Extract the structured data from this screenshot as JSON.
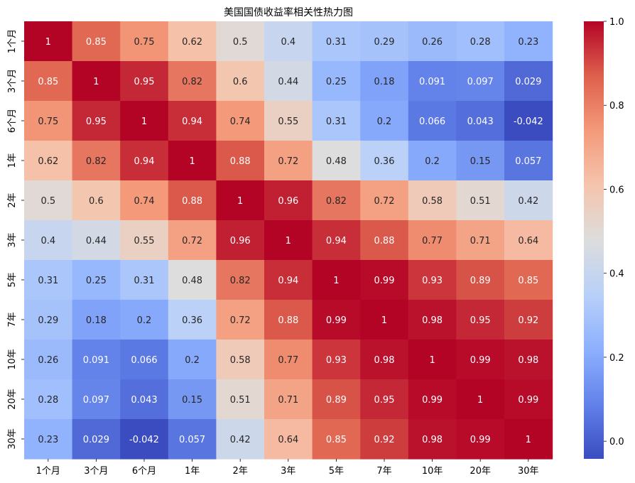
{
  "chart_data": {
    "type": "heatmap",
    "title": "美国国债收益率相关性热力图",
    "xlabel": "",
    "ylabel": "",
    "x_labels": [
      "1个月",
      "3个月",
      "6个月",
      "1年",
      "2年",
      "3年",
      "5年",
      "7年",
      "10年",
      "20年",
      "30年"
    ],
    "y_labels": [
      "1个月",
      "3个月",
      "6个月",
      "1年",
      "2年",
      "3年",
      "5年",
      "7年",
      "10年",
      "20年",
      "30年"
    ],
    "values": [
      [
        1,
        0.85,
        0.75,
        0.62,
        0.5,
        0.4,
        0.31,
        0.29,
        0.26,
        0.28,
        0.23
      ],
      [
        0.85,
        1,
        0.95,
        0.82,
        0.6,
        0.44,
        0.25,
        0.18,
        0.091,
        0.097,
        0.029
      ],
      [
        0.75,
        0.95,
        1,
        0.94,
        0.74,
        0.55,
        0.31,
        0.2,
        0.066,
        0.043,
        -0.042
      ],
      [
        0.62,
        0.82,
        0.94,
        1,
        0.88,
        0.72,
        0.48,
        0.36,
        0.2,
        0.15,
        0.057
      ],
      [
        0.5,
        0.6,
        0.74,
        0.88,
        1,
        0.96,
        0.82,
        0.72,
        0.58,
        0.51,
        0.42
      ],
      [
        0.4,
        0.44,
        0.55,
        0.72,
        0.96,
        1,
        0.94,
        0.88,
        0.77,
        0.71,
        0.64
      ],
      [
        0.31,
        0.25,
        0.31,
        0.48,
        0.82,
        0.94,
        1,
        0.99,
        0.93,
        0.89,
        0.85
      ],
      [
        0.29,
        0.18,
        0.2,
        0.36,
        0.72,
        0.88,
        0.99,
        1,
        0.98,
        0.95,
        0.92
      ],
      [
        0.26,
        0.091,
        0.066,
        0.2,
        0.58,
        0.77,
        0.93,
        0.98,
        1,
        0.99,
        0.98
      ],
      [
        0.28,
        0.097,
        0.043,
        0.15,
        0.51,
        0.71,
        0.89,
        0.95,
        0.99,
        1,
        0.99
      ],
      [
        0.23,
        0.029,
        -0.042,
        0.057,
        0.42,
        0.64,
        0.85,
        0.92,
        0.98,
        0.99,
        1
      ]
    ],
    "value_labels": [
      [
        "1",
        "0.85",
        "0.75",
        "0.62",
        "0.5",
        "0.4",
        "0.31",
        "0.29",
        "0.26",
        "0.28",
        "0.23"
      ],
      [
        "0.85",
        "1",
        "0.95",
        "0.82",
        "0.6",
        "0.44",
        "0.25",
        "0.18",
        "0.091",
        "0.097",
        "0.029"
      ],
      [
        "0.75",
        "0.95",
        "1",
        "0.94",
        "0.74",
        "0.55",
        "0.31",
        "0.2",
        "0.066",
        "0.043",
        "-0.042"
      ],
      [
        "0.62",
        "0.82",
        "0.94",
        "1",
        "0.88",
        "0.72",
        "0.48",
        "0.36",
        "0.2",
        "0.15",
        "0.057"
      ],
      [
        "0.5",
        "0.6",
        "0.74",
        "0.88",
        "1",
        "0.96",
        "0.82",
        "0.72",
        "0.58",
        "0.51",
        "0.42"
      ],
      [
        "0.4",
        "0.44",
        "0.55",
        "0.72",
        "0.96",
        "1",
        "0.94",
        "0.88",
        "0.77",
        "0.71",
        "0.64"
      ],
      [
        "0.31",
        "0.25",
        "0.31",
        "0.48",
        "0.82",
        "0.94",
        "1",
        "0.99",
        "0.93",
        "0.89",
        "0.85"
      ],
      [
        "0.29",
        "0.18",
        "0.2",
        "0.36",
        "0.72",
        "0.88",
        "0.99",
        "1",
        "0.98",
        "0.95",
        "0.92"
      ],
      [
        "0.26",
        "0.091",
        "0.066",
        "0.2",
        "0.58",
        "0.77",
        "0.93",
        "0.98",
        "1",
        "0.99",
        "0.98"
      ],
      [
        "0.28",
        "0.097",
        "0.043",
        "0.15",
        "0.51",
        "0.71",
        "0.89",
        "0.95",
        "0.99",
        "1",
        "0.99"
      ],
      [
        "0.23",
        "0.029",
        "-0.042",
        "0.057",
        "0.42",
        "0.64",
        "0.85",
        "0.92",
        "0.98",
        "0.99",
        "1"
      ]
    ],
    "colormap": "coolwarm",
    "vmin": -0.042,
    "vmax": 1,
    "colorbar": {
      "ticks": [
        0.0,
        0.2,
        0.4,
        0.6,
        0.8,
        1.0
      ],
      "tick_labels": [
        "0.0",
        "0.2",
        "0.4",
        "0.6",
        "0.8",
        "1.0"
      ],
      "placement": "right"
    },
    "grid": false,
    "annotations": true
  }
}
